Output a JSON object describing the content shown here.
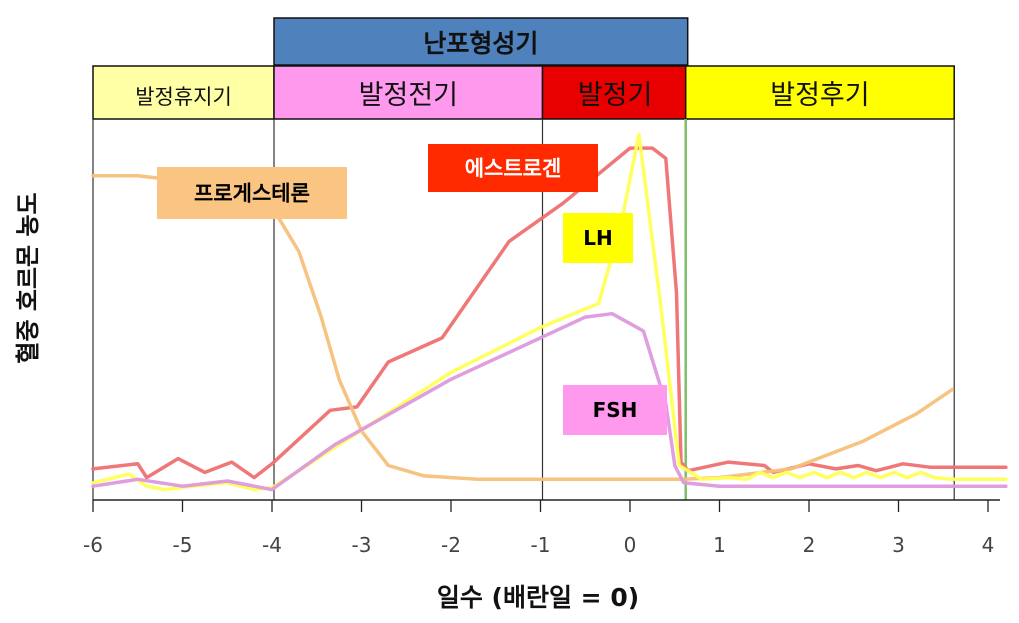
{
  "chart_data": {
    "type": "line",
    "xlabel": "일수 (배란일 = 0)",
    "ylabel": "혈중 호르몬 농도",
    "xlim": [
      -6,
      4.4
    ],
    "ylim": [
      0,
      100
    ],
    "ticks": [
      -6,
      -5,
      -4,
      -3,
      -2,
      -1,
      0,
      1,
      2,
      3,
      4
    ],
    "tick_labels": [
      "-6",
      "-5",
      "-4",
      "-3",
      "-2",
      "-1",
      "0",
      "1",
      "2",
      "3",
      "4"
    ],
    "top_band": {
      "label": "난포형성기",
      "x_range": [
        -4,
        0.6
      ],
      "color": "#4f81bd"
    },
    "phases": [
      {
        "label": "발정휴지기",
        "x_range": [
          -6,
          -4
        ],
        "color": "#ffffa6"
      },
      {
        "label": "발정전기",
        "x_range": [
          -4,
          -1
        ],
        "color": "#ff99ee"
      },
      {
        "label": "발정기",
        "x_range": [
          -1,
          0.6
        ],
        "color": "#e80000"
      },
      {
        "label": "발정후기",
        "x_range": [
          0.6,
          3.6
        ],
        "color": "#ffff00"
      }
    ],
    "series": [
      {
        "name": "에스트로겐",
        "color": "#ef7070",
        "label_color": "#ff2a00",
        "label_text_color": "#ffffff",
        "points": [
          [
            -6,
            9
          ],
          [
            -5.5,
            10.5
          ],
          [
            -5.4,
            6.5
          ],
          [
            -5.05,
            12
          ],
          [
            -4.75,
            8
          ],
          [
            -4.45,
            11
          ],
          [
            -4.2,
            6.5
          ],
          [
            -4,
            10.5
          ],
          [
            -3.35,
            26
          ],
          [
            -3.05,
            27
          ],
          [
            -2.7,
            40
          ],
          [
            -2.1,
            47
          ],
          [
            -1.35,
            75
          ],
          [
            -0.75,
            86
          ],
          [
            0,
            102
          ],
          [
            0.25,
            102
          ],
          [
            0.4,
            99
          ],
          [
            0.52,
            60
          ],
          [
            0.57,
            11
          ],
          [
            0.65,
            8.5
          ],
          [
            1.1,
            11
          ],
          [
            1.5,
            10
          ],
          [
            1.6,
            8
          ],
          [
            2,
            10.5
          ],
          [
            2.3,
            9
          ],
          [
            2.55,
            10
          ],
          [
            2.75,
            8.5
          ],
          [
            3.05,
            10.5
          ],
          [
            3.35,
            9.5
          ],
          [
            4.2,
            9.5
          ]
        ]
      },
      {
        "name": "프로게스테론",
        "color": "#f5c07a",
        "label_color": "#fac583",
        "label_text_color": "#000000",
        "points": [
          [
            -6,
            94
          ],
          [
            -5.5,
            94
          ],
          [
            -4.5,
            91
          ],
          [
            -4,
            85
          ],
          [
            -3.7,
            72
          ],
          [
            -3.45,
            53
          ],
          [
            -3.25,
            35
          ],
          [
            -3,
            20
          ],
          [
            -2.7,
            10
          ],
          [
            -2.3,
            7
          ],
          [
            -1.7,
            6
          ],
          [
            0,
            6
          ],
          [
            0.6,
            6
          ],
          [
            1,
            6.5
          ],
          [
            1.8,
            9
          ],
          [
            2.6,
            17
          ],
          [
            3.2,
            25
          ],
          [
            3.6,
            32
          ]
        ]
      },
      {
        "name": "LH",
        "color": "#ffff55",
        "label_color": "#ffff00",
        "label_text_color": "#000000",
        "points": [
          [
            -6,
            5
          ],
          [
            -5.6,
            7.5
          ],
          [
            -5.4,
            4
          ],
          [
            -5.2,
            3
          ],
          [
            -4.9,
            4
          ],
          [
            -4.5,
            5
          ],
          [
            -4.2,
            3
          ],
          [
            -4,
            3.5
          ],
          [
            -2,
            37
          ],
          [
            -1,
            50
          ],
          [
            -0.35,
            57
          ],
          [
            -0.1,
            80
          ],
          [
            0.1,
            106
          ],
          [
            0.35,
            55
          ],
          [
            0.55,
            10
          ],
          [
            0.68,
            8
          ],
          [
            0.8,
            6
          ],
          [
            1.1,
            6.5
          ],
          [
            1.3,
            6
          ],
          [
            1.45,
            8
          ],
          [
            1.6,
            6.5
          ],
          [
            1.75,
            8
          ],
          [
            1.9,
            6.5
          ],
          [
            2.05,
            8
          ],
          [
            2.2,
            6.5
          ],
          [
            2.35,
            8
          ],
          [
            2.5,
            6.5
          ],
          [
            2.65,
            8
          ],
          [
            2.8,
            6.5
          ],
          [
            2.95,
            8
          ],
          [
            3.1,
            6.5
          ],
          [
            3.25,
            8
          ],
          [
            3.4,
            6.5
          ],
          [
            3.6,
            6
          ],
          [
            4.2,
            6
          ]
        ]
      },
      {
        "name": "FSH",
        "color": "#dd99dd",
        "label_color": "#ff99ee",
        "label_text_color": "#000000",
        "points": [
          [
            -6,
            4
          ],
          [
            -5.5,
            6
          ],
          [
            -5,
            4
          ],
          [
            -4.5,
            5.5
          ],
          [
            -4,
            3
          ],
          [
            -3.3,
            16
          ],
          [
            -2,
            35
          ],
          [
            -1,
            47
          ],
          [
            -0.5,
            53
          ],
          [
            -0.2,
            54
          ],
          [
            0.15,
            49
          ],
          [
            0.4,
            28
          ],
          [
            0.5,
            10
          ],
          [
            0.6,
            5
          ],
          [
            1,
            4
          ],
          [
            2,
            4
          ],
          [
            3,
            4
          ],
          [
            4.2,
            4
          ]
        ]
      }
    ],
    "grid": false,
    "legend": "labels inside plot"
  }
}
